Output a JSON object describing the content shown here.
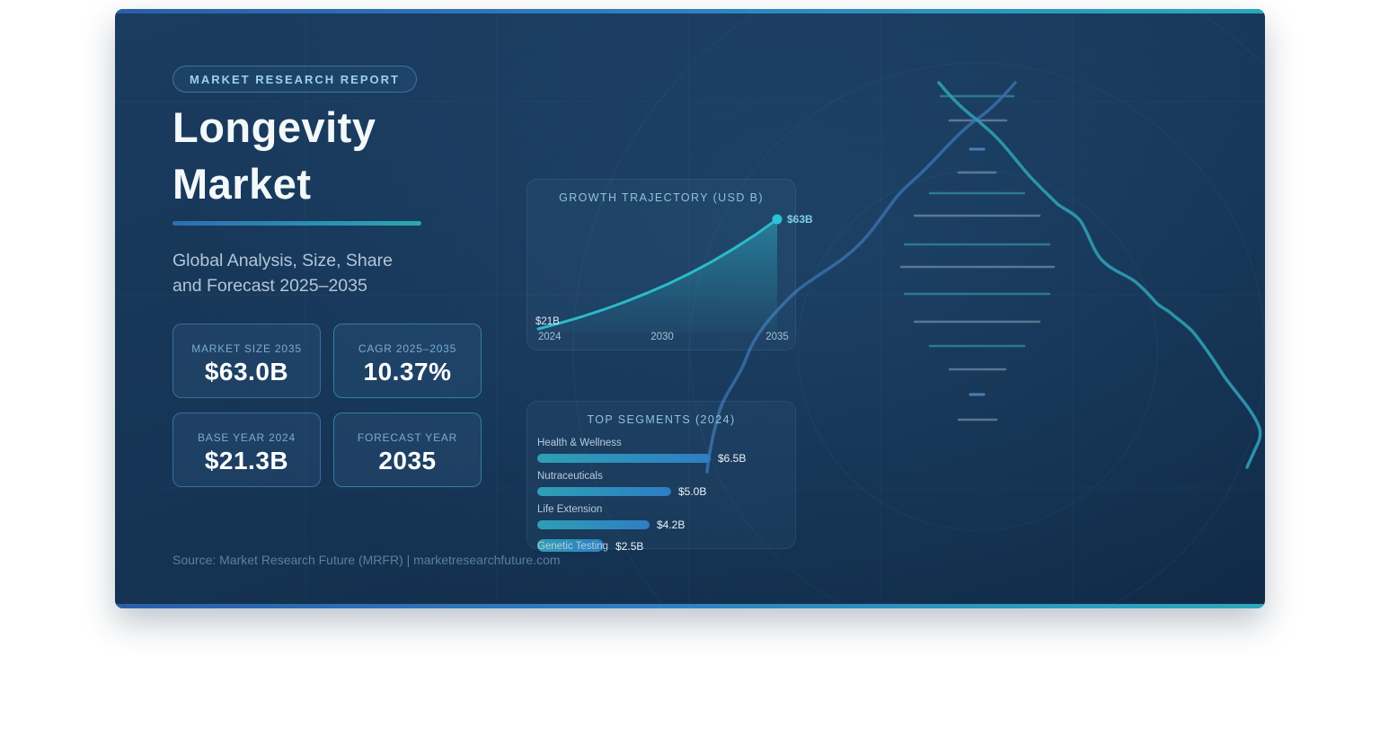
{
  "badge": {
    "label": "MARKET RESEARCH REPORT"
  },
  "title": {
    "line1": "Longevity",
    "line2": "Market"
  },
  "subtitle": {
    "line1": "Global Analysis, Size, Share",
    "line2": "and Forecast 2025–2035"
  },
  "stats": [
    {
      "label": "MARKET SIZE 2035",
      "value": "$63.0B"
    },
    {
      "label": "CAGR 2025–2035",
      "value": "10.37%"
    },
    {
      "label": "BASE YEAR 2024",
      "value": "$21.3B"
    },
    {
      "label": "FORECAST YEAR",
      "value": "2035"
    }
  ],
  "source": "Source: Market Research Future (MRFR) | marketresearchfuture.com",
  "colors": {
    "accent_blue": "#2f6fb8",
    "accent_teal": "#2aa9bc",
    "line": "#2cbac9",
    "bar_gradient_start": "#2e9fb4",
    "bar_gradient_end": "#2e7ec4",
    "card_background": "#163556"
  },
  "chart_data": [
    {
      "type": "area",
      "title": "GROWTH TRAJECTORY (USD B)",
      "xlabel": "",
      "ylabel": "USD Billions",
      "x": [
        2024,
        2025,
        2026,
        2027,
        2028,
        2029,
        2030,
        2031,
        2032,
        2033,
        2034,
        2035
      ],
      "values": [
        21.3,
        23.5,
        25.9,
        28.6,
        31.6,
        34.9,
        38.5,
        42.5,
        46.9,
        51.8,
        57.1,
        63.0
      ],
      "x_ticks": [
        "2024",
        "2030",
        "2035"
      ],
      "start_label": "$21B",
      "end_label": "$63B",
      "ylim": [
        21.3,
        63.0
      ],
      "grid": false,
      "legend": "none"
    },
    {
      "type": "bar",
      "orientation": "horizontal",
      "title": "TOP SEGMENTS (2024)",
      "categories": [
        "Health & Wellness",
        "Nutraceuticals",
        "Life Extension",
        "Genetic Testing"
      ],
      "values": [
        6.5,
        5.0,
        4.2,
        2.5
      ],
      "value_labels": [
        "$6.5B",
        "$5.0B",
        "$4.2B",
        "$2.5B"
      ],
      "xlim": [
        0,
        7
      ]
    }
  ]
}
